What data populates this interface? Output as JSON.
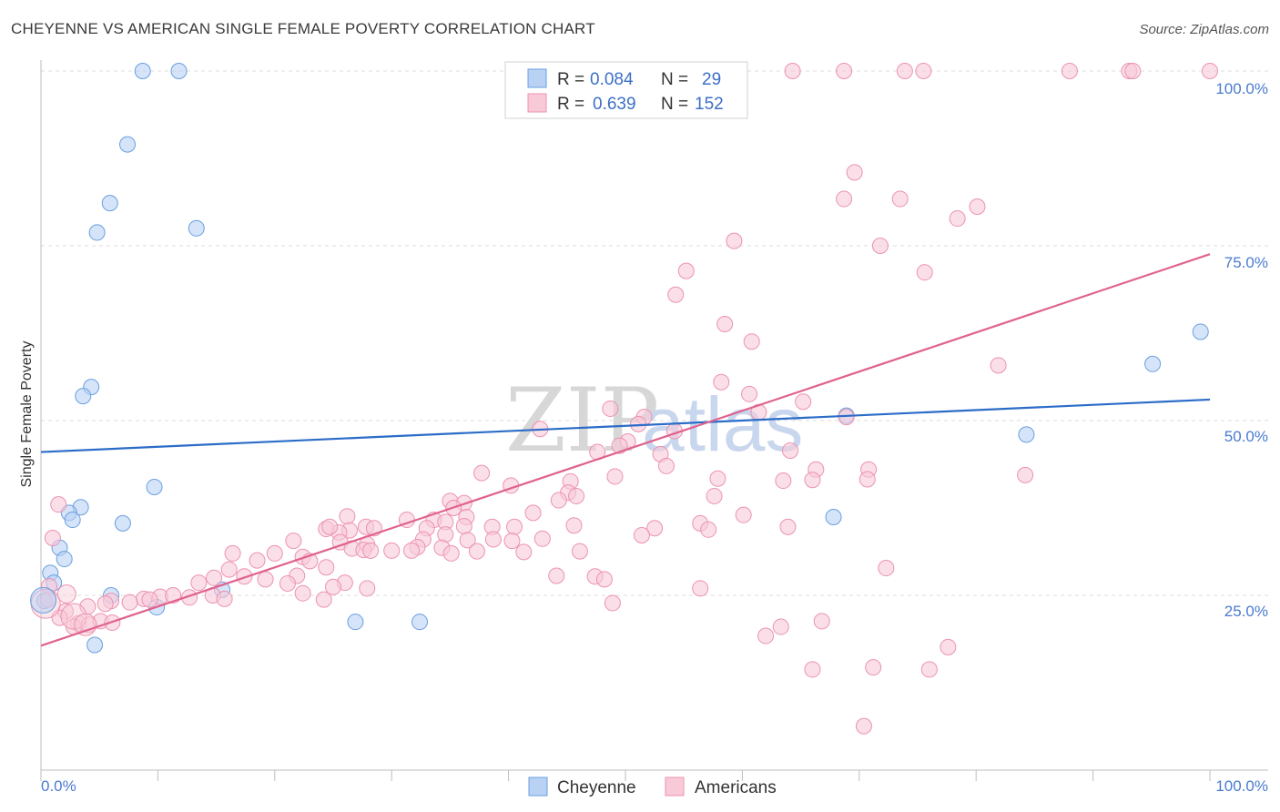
{
  "header": {
    "title": "CHEYENNE VS AMERICAN SINGLE FEMALE POVERTY CORRELATION CHART",
    "source": "Source: ZipAtlas.com"
  },
  "watermark": {
    "part1": "ZIP",
    "part2": "atlas"
  },
  "chart_data": {
    "type": "scatter",
    "ylabel": "Single Female Poverty",
    "xlabel": "",
    "x_tick_labels": [
      "0.0%",
      "100.0%"
    ],
    "y_tick_labels": [
      "25.0%",
      "50.0%",
      "75.0%",
      "100.0%"
    ],
    "xlim": [
      0,
      100
    ],
    "ylim": [
      0,
      100
    ],
    "grid": true,
    "legend_position": "top-center",
    "stats": [
      {
        "r_label": "R =",
        "r_value": "0.084",
        "n_label": "N =",
        "n_value": "29"
      },
      {
        "r_label": "R =",
        "r_value": "0.639",
        "n_label": "N =",
        "n_value": "152"
      }
    ],
    "series": [
      {
        "name": "Cheyenne",
        "color": "#6a9fe0",
        "fill": "#b9d2f3",
        "trend_color": "#2b6cc8",
        "trend": {
          "x0": 0,
          "y0": 45.5,
          "x1": 100,
          "y1": 53.0
        },
        "points": [
          [
            8.7,
            100
          ],
          [
            11.8,
            100
          ],
          [
            7.4,
            89.5
          ],
          [
            5.9,
            81.1
          ],
          [
            4.8,
            76.9
          ],
          [
            13.3,
            77.5
          ],
          [
            4.3,
            54.8
          ],
          [
            3.6,
            53.5
          ],
          [
            9.7,
            40.5
          ],
          [
            3.4,
            37.6
          ],
          [
            2.4,
            36.8
          ],
          [
            2.7,
            35.8
          ],
          [
            7.0,
            35.3
          ],
          [
            1.6,
            31.8
          ],
          [
            2.0,
            30.2
          ],
          [
            0.8,
            28.2
          ],
          [
            1.1,
            26.8
          ],
          [
            6.0,
            25.0
          ],
          [
            15.5,
            25.8
          ],
          [
            9.9,
            23.3
          ],
          [
            0.3,
            24.2
          ],
          [
            4.6,
            17.9
          ],
          [
            26.9,
            21.2
          ],
          [
            32.4,
            21.2
          ],
          [
            68.9,
            50.7
          ],
          [
            67.8,
            36.2
          ],
          [
            84.3,
            48.0
          ],
          [
            95.1,
            58.1
          ],
          [
            99.2,
            62.7
          ]
        ]
      },
      {
        "name": "Americans",
        "color": "#ec93b0",
        "fill": "#f8cad8",
        "trend_color": "#e0628e",
        "trend": {
          "x0": 0,
          "y0": 17.8,
          "x1": 100,
          "y1": 73.8
        },
        "points": [
          [
            64.3,
            100
          ],
          [
            68.7,
            100
          ],
          [
            73.9,
            100
          ],
          [
            75.5,
            100
          ],
          [
            88.0,
            100
          ],
          [
            93.1,
            100
          ],
          [
            93.4,
            100
          ],
          [
            100,
            100
          ],
          [
            69.6,
            85.5
          ],
          [
            68.7,
            81.7
          ],
          [
            73.5,
            81.7
          ],
          [
            80.1,
            80.6
          ],
          [
            78.4,
            78.9
          ],
          [
            59.3,
            75.7
          ],
          [
            71.8,
            75.0
          ],
          [
            55.2,
            71.4
          ],
          [
            75.6,
            71.2
          ],
          [
            54.3,
            68.0
          ],
          [
            58.5,
            63.8
          ],
          [
            60.8,
            61.3
          ],
          [
            81.9,
            57.9
          ],
          [
            58.2,
            55.5
          ],
          [
            60.6,
            53.8
          ],
          [
            65.2,
            52.7
          ],
          [
            48.7,
            51.7
          ],
          [
            51.6,
            50.5
          ],
          [
            68.9,
            50.5
          ],
          [
            54.2,
            48.5
          ],
          [
            42.7,
            48.8
          ],
          [
            53.0,
            45.2
          ],
          [
            47.6,
            45.5
          ],
          [
            64.1,
            45.7
          ],
          [
            66.3,
            43.0
          ],
          [
            53.5,
            43.5
          ],
          [
            37.7,
            42.5
          ],
          [
            45.3,
            41.3
          ],
          [
            49.1,
            42.0
          ],
          [
            57.9,
            41.7
          ],
          [
            40.2,
            40.7
          ],
          [
            66.0,
            41.5
          ],
          [
            45.1,
            39.7
          ],
          [
            45.8,
            39.2
          ],
          [
            35.0,
            38.5
          ],
          [
            57.6,
            39.2
          ],
          [
            44.3,
            38.6
          ],
          [
            36.2,
            38.2
          ],
          [
            35.3,
            37.5
          ],
          [
            26.2,
            36.3
          ],
          [
            42.1,
            36.8
          ],
          [
            36.4,
            36.2
          ],
          [
            33.6,
            35.8
          ],
          [
            34.6,
            35.5
          ],
          [
            60.1,
            36.5
          ],
          [
            56.4,
            35.3
          ],
          [
            31.3,
            35.8
          ],
          [
            40.5,
            34.8
          ],
          [
            26.4,
            34.3
          ],
          [
            27.8,
            34.8
          ],
          [
            25.5,
            34.0
          ],
          [
            24.4,
            34.5
          ],
          [
            33.0,
            34.6
          ],
          [
            24.7,
            34.8
          ],
          [
            28.5,
            34.6
          ],
          [
            45.6,
            35.0
          ],
          [
            52.5,
            34.6
          ],
          [
            63.9,
            34.8
          ],
          [
            38.6,
            34.8
          ],
          [
            36.2,
            34.9
          ],
          [
            34.6,
            33.7
          ],
          [
            51.4,
            33.6
          ],
          [
            36.5,
            32.9
          ],
          [
            42.9,
            33.1
          ],
          [
            32.7,
            33.0
          ],
          [
            40.3,
            32.8
          ],
          [
            25.6,
            32.6
          ],
          [
            38.7,
            33.0
          ],
          [
            21.6,
            32.8
          ],
          [
            27.9,
            32.3
          ],
          [
            34.3,
            31.8
          ],
          [
            32.2,
            31.9
          ],
          [
            26.6,
            31.7
          ],
          [
            27.6,
            31.5
          ],
          [
            28.2,
            31.4
          ],
          [
            30.0,
            31.4
          ],
          [
            31.7,
            31.4
          ],
          [
            37.3,
            31.3
          ],
          [
            41.3,
            31.2
          ],
          [
            46.1,
            31.3
          ],
          [
            16.4,
            31.0
          ],
          [
            20.0,
            31.0
          ],
          [
            22.4,
            30.5
          ],
          [
            18.5,
            30.0
          ],
          [
            23.0,
            29.9
          ],
          [
            24.4,
            29.0
          ],
          [
            16.1,
            28.7
          ],
          [
            21.9,
            27.8
          ],
          [
            14.8,
            27.5
          ],
          [
            26.0,
            26.8
          ],
          [
            17.4,
            27.7
          ],
          [
            19.2,
            27.3
          ],
          [
            47.4,
            27.7
          ],
          [
            13.5,
            26.8
          ],
          [
            25.0,
            26.2
          ],
          [
            21.1,
            26.7
          ],
          [
            22.4,
            25.3
          ],
          [
            14.7,
            25.0
          ],
          [
            15.7,
            24.5
          ],
          [
            10.2,
            24.8
          ],
          [
            11.3,
            25.0
          ],
          [
            12.7,
            24.7
          ],
          [
            8.8,
            24.5
          ],
          [
            9.3,
            24.4
          ],
          [
            6.0,
            24.2
          ],
          [
            7.6,
            24.0
          ],
          [
            5.5,
            23.8
          ],
          [
            4.0,
            23.4
          ],
          [
            2.1,
            22.7
          ],
          [
            1.6,
            21.8
          ],
          [
            3.2,
            21.0
          ],
          [
            4.1,
            20.8
          ],
          [
            5.1,
            21.3
          ],
          [
            6.1,
            21.1
          ],
          [
            2.8,
            20.5
          ],
          [
            1.5,
            38.0
          ],
          [
            1.0,
            33.2
          ],
          [
            0.7,
            26.3
          ],
          [
            0.6,
            24.4
          ],
          [
            70.8,
            43.0
          ],
          [
            70.7,
            41.6
          ],
          [
            84.2,
            42.2
          ],
          [
            72.3,
            28.9
          ],
          [
            56.4,
            26.0
          ],
          [
            63.3,
            20.5
          ],
          [
            66.8,
            21.3
          ],
          [
            66.0,
            14.4
          ],
          [
            71.2,
            14.7
          ],
          [
            76.0,
            14.4
          ],
          [
            70.4,
            6.3
          ],
          [
            77.6,
            17.6
          ],
          [
            48.9,
            23.9
          ],
          [
            62.0,
            19.2
          ],
          [
            48.2,
            27.3
          ],
          [
            44.1,
            27.8
          ],
          [
            63.5,
            41.4
          ],
          [
            57.1,
            34.4
          ],
          [
            24.2,
            24.4
          ],
          [
            27.9,
            26.0
          ],
          [
            35.1,
            31.0
          ],
          [
            61.4,
            51.2
          ],
          [
            51.1,
            49.5
          ],
          [
            50.2,
            47.0
          ],
          [
            49.5,
            46.4
          ]
        ]
      }
    ]
  }
}
